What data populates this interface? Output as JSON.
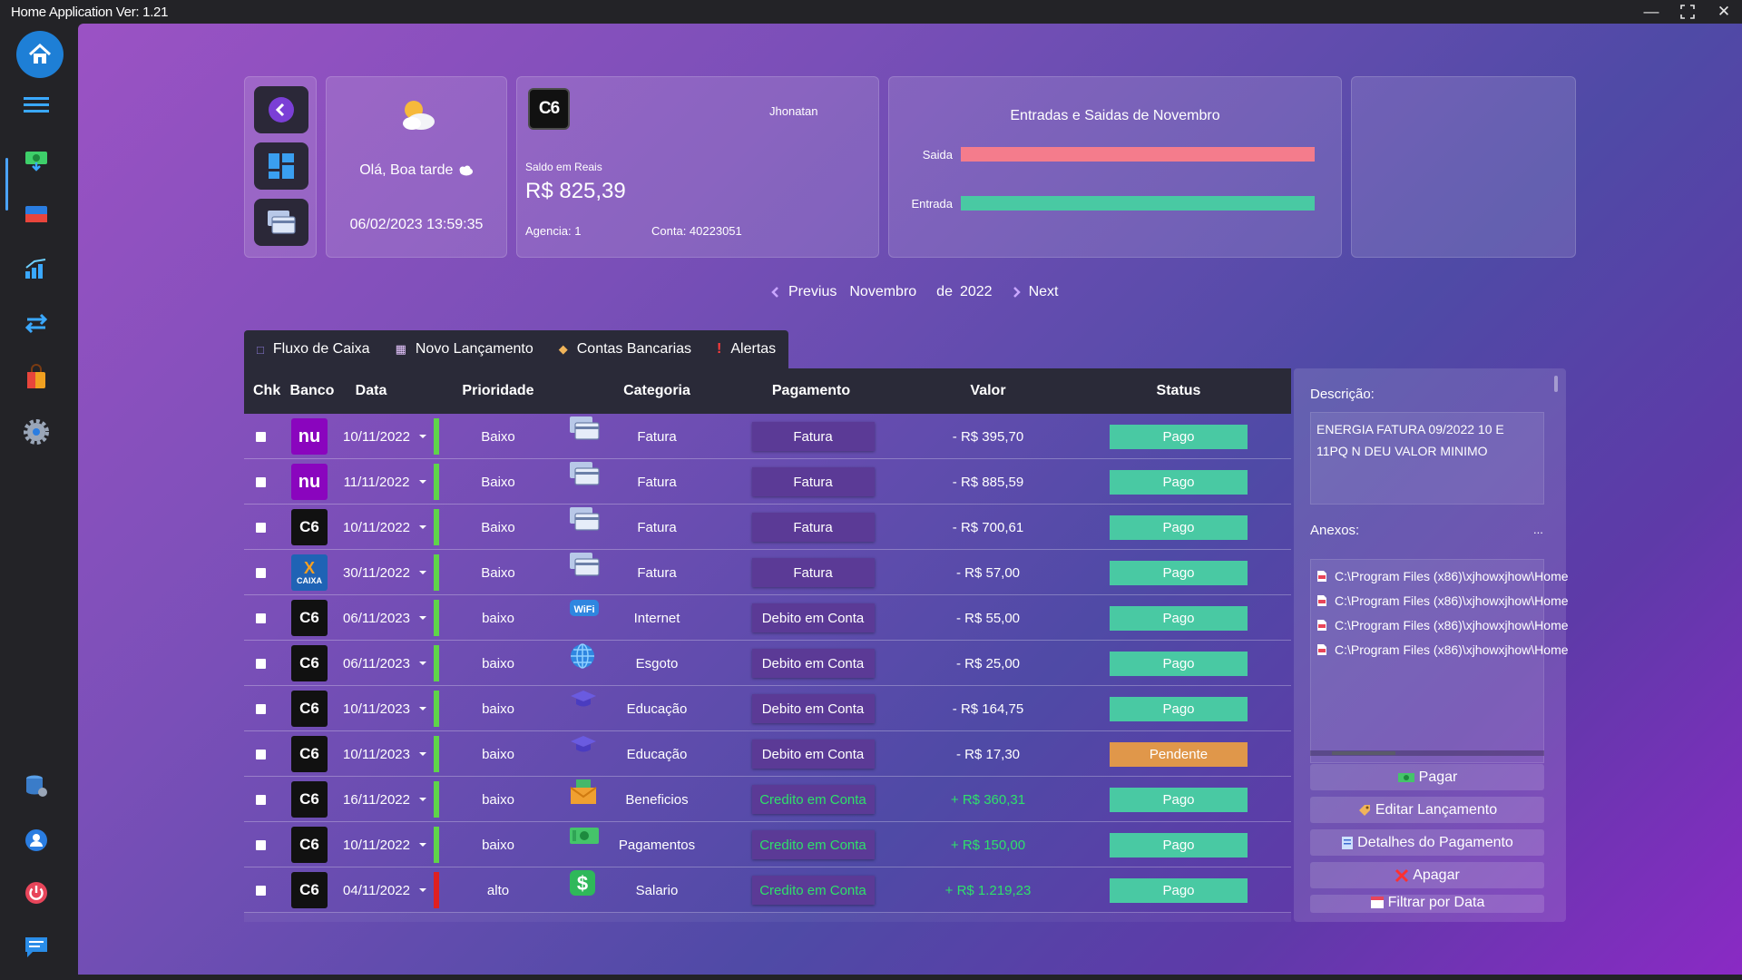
{
  "window": {
    "title": "Home Application Ver: 1.21"
  },
  "greeting": {
    "text": "Olá, Boa tarde",
    "datetime": "06/02/2023 13:59:35"
  },
  "account": {
    "bank": "C6",
    "owner": "Jhonatan",
    "balance_label": "Saldo em Reais",
    "balance": "R$ 825,39",
    "agency": "Agencia: 1",
    "account": "Conta: 40223051"
  },
  "summary_chart": {
    "title": "Entradas e Saidas de Novembro",
    "saida_label": "Saida",
    "entrada_label": "Entrada",
    "colors": {
      "saida": "#f47c8c",
      "entrada": "#49c9a3"
    }
  },
  "month_nav": {
    "previous": "Previus",
    "month": "Novembro",
    "de": "de",
    "year": "2022",
    "next": "Next"
  },
  "tabs": [
    "Fluxo de Caixa",
    "Novo Lançamento",
    "Contas Bancarias",
    "Alertas"
  ],
  "columns": [
    "Chk",
    "Banco",
    "Data",
    "Prioridade",
    "Categoria",
    "Pagamento",
    "Valor",
    "Status"
  ],
  "rows": [
    {
      "bank": "nu",
      "date": "10/11/2022",
      "priority": "Baixo",
      "category": "Fatura",
      "cat_icon": "card",
      "payment": "Fatura",
      "value": "- R$ 395,70",
      "status": "Pago"
    },
    {
      "bank": "nu",
      "date": "11/11/2022",
      "priority": "Baixo",
      "category": "Fatura",
      "cat_icon": "card",
      "payment": "Fatura",
      "value": "- R$ 885,59",
      "status": "Pago"
    },
    {
      "bank": "C6",
      "date": "10/11/2022",
      "priority": "Baixo",
      "category": "Fatura",
      "cat_icon": "card",
      "payment": "Fatura",
      "value": "- R$ 700,61",
      "status": "Pago"
    },
    {
      "bank": "caixa",
      "date": "30/11/2022",
      "priority": "Baixo",
      "category": "Fatura",
      "cat_icon": "card",
      "payment": "Fatura",
      "value": "- R$ 57,00",
      "status": "Pago"
    },
    {
      "bank": "C6",
      "date": "06/11/2023",
      "priority": "baixo",
      "category": "Internet",
      "cat_icon": "wifi",
      "payment": "Debito em Conta",
      "value": "- R$ 55,00",
      "status": "Pago"
    },
    {
      "bank": "C6",
      "date": "06/11/2023",
      "priority": "baixo",
      "category": "Esgoto",
      "cat_icon": "globe",
      "payment": "Debito em Conta",
      "value": "- R$ 25,00",
      "status": "Pago"
    },
    {
      "bank": "C6",
      "date": "10/11/2023",
      "priority": "baixo",
      "category": "Educação",
      "cat_icon": "cap",
      "payment": "Debito em Conta",
      "value": "- R$ 164,75",
      "status": "Pago"
    },
    {
      "bank": "C6",
      "date": "10/11/2023",
      "priority": "baixo",
      "category": "Educação",
      "cat_icon": "cap",
      "payment": "Debito em Conta",
      "value": "- R$ 17,30",
      "status": "Pendente"
    },
    {
      "bank": "C6",
      "date": "16/11/2022",
      "priority": "baixo",
      "category": "Beneficios",
      "cat_icon": "envelope",
      "payment": "Credito em Conta",
      "value": "+ R$ 360,31",
      "status": "Pago"
    },
    {
      "bank": "C6",
      "date": "10/11/2022",
      "priority": "baixo",
      "category": "Pagamentos",
      "cat_icon": "cash",
      "payment": "Credito em Conta",
      "value": "+ R$ 150,00",
      "status": "Pago"
    },
    {
      "bank": "C6",
      "date": "04/11/2022",
      "priority": "alto",
      "category": "Salario",
      "cat_icon": "dollar",
      "payment": "Credito em Conta",
      "value": "+ R$ 1.219,23",
      "status": "Pago"
    }
  ],
  "details": {
    "description_label": "Descrição:",
    "description": "ENERGIA FATURA 09/2022 10 E 11PQ N DEU VALOR MINIMO",
    "attachments_label": "Anexos:",
    "attachments_more": "...",
    "attachments": [
      "C:\\Program Files (x86)\\xjhowxjhow\\Home",
      "C:\\Program Files (x86)\\xjhowxjhow\\Home",
      "C:\\Program Files (x86)\\xjhowxjhow\\Home",
      "C:\\Program Files (x86)\\xjhowxjhow\\Home"
    ],
    "actions": [
      "Pagar",
      "Editar Lançamento",
      "Detalhes do Pagamento",
      "Apagar",
      "Filtrar por Data"
    ]
  },
  "colors": {
    "pago": "#49c9a3",
    "pendente": "#e0974a",
    "credit_text": "#2fe06a",
    "debit_text": "#ffffff",
    "prio_low": "#5fd44a",
    "prio_high": "#e02020",
    "nu": "#8a05be",
    "c6": "#111111",
    "caixa": "#1f63b5"
  }
}
